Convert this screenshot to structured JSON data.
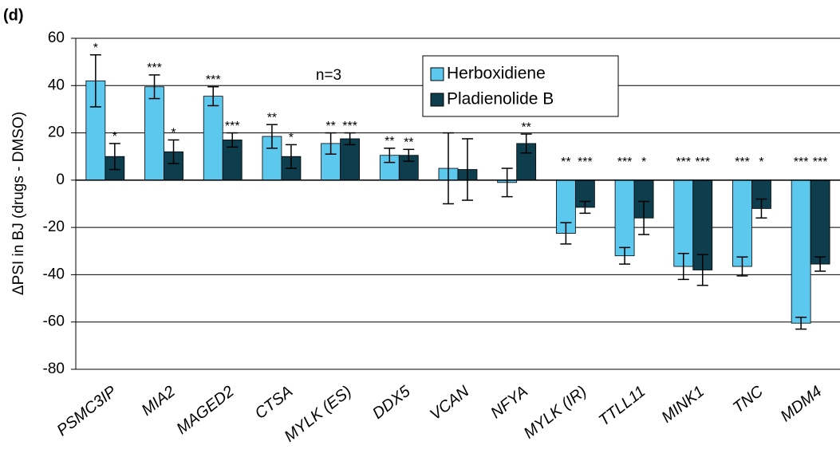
{
  "chart_data": {
    "type": "bar",
    "panel_label": "(d)",
    "y_label": "ΔPSI in BJ (drugs - DMSO)",
    "annotation": "n=3",
    "categories": [
      "PSMC3IP",
      "MIA2",
      "MAGED2",
      "CTSA",
      "MYLK (ES)",
      "DDX5",
      "VCAN",
      "NFYA",
      "MYLK (IR)",
      "TTLL11",
      "MINK1",
      "TNC",
      "MDM4"
    ],
    "series": [
      {
        "name": "Herboxidiene",
        "color": "#5cc8ee",
        "values": [
          42,
          39.5,
          35.5,
          18.5,
          15.5,
          10.5,
          5,
          -1,
          -22.5,
          -32,
          -36.5,
          -36.5,
          -60.5
        ],
        "errors": [
          11,
          5,
          4,
          5,
          4.5,
          3,
          15,
          6,
          4.5,
          3.5,
          5.5,
          4,
          2.5
        ],
        "significance": [
          "*",
          "***",
          "***",
          "**",
          "**",
          "**",
          null,
          null,
          "**",
          "***",
          "***",
          "***",
          "***"
        ]
      },
      {
        "name": "Pladienolide B",
        "color": "#0e3d4e",
        "values": [
          10,
          12,
          17,
          10,
          17.5,
          10.5,
          4.5,
          15.5,
          -11.5,
          -16,
          -38,
          -12,
          -35.5
        ],
        "errors": [
          5.5,
          5,
          3,
          5,
          2.5,
          2.5,
          13,
          4,
          2.5,
          7,
          6.5,
          4,
          3
        ],
        "significance": [
          "*",
          "*",
          "***",
          "*",
          "***",
          "**",
          null,
          "**",
          "***",
          "*",
          "***",
          "*",
          "***"
        ]
      }
    ],
    "ylim": [
      -80,
      60
    ],
    "yticks": [
      -80,
      -60,
      -40,
      -20,
      0,
      20,
      40,
      60
    ],
    "grid": true,
    "legend": "top-center"
  }
}
